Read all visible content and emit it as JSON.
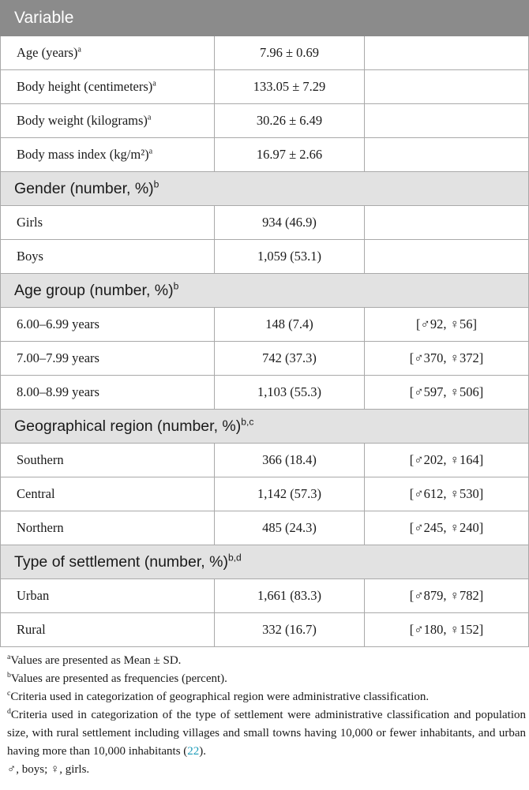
{
  "table": {
    "header": "Variable",
    "rows": [
      {
        "label": "Age (years)",
        "sup": "a",
        "value": "7.96 ± 0.69",
        "note": ""
      },
      {
        "label": "Body height (centimeters)",
        "sup": "a",
        "value": "133.05 ± 7.29",
        "note": ""
      },
      {
        "label": "Body weight (kilograms)",
        "sup": "a",
        "value": "30.26 ± 6.49",
        "note": ""
      },
      {
        "label": "Body mass index (kg/m²)",
        "sup": "a",
        "value": "16.97 ± 2.66",
        "note": ""
      }
    ],
    "sections": [
      {
        "title": "Gender (number, %)",
        "sup": "b",
        "rows": [
          {
            "label": "Girls",
            "value": "934 (46.9)",
            "note": ""
          },
          {
            "label": "Boys",
            "value": "1,059 (53.1)",
            "note": ""
          }
        ]
      },
      {
        "title": "Age group (number, %)",
        "sup": "b",
        "rows": [
          {
            "label": "6.00–6.99 years",
            "value": "148 (7.4)",
            "note": "[♂92, ♀56]"
          },
          {
            "label": "7.00–7.99 years",
            "value": "742 (37.3)",
            "note": "[♂370, ♀372]"
          },
          {
            "label": "8.00–8.99 years",
            "value": "1,103 (55.3)",
            "note": "[♂597, ♀506]"
          }
        ]
      },
      {
        "title": "Geographical region (number, %)",
        "sup": "b,c",
        "rows": [
          {
            "label": "Southern",
            "value": "366 (18.4)",
            "note": "[♂202, ♀164]"
          },
          {
            "label": "Central",
            "value": "1,142 (57.3)",
            "note": "[♂612, ♀530]"
          },
          {
            "label": "Northern",
            "value": "485 (24.3)",
            "note": "[♂245, ♀240]"
          }
        ]
      },
      {
        "title": "Type of settlement (number, %)",
        "sup": "b,d",
        "rows": [
          {
            "label": "Urban",
            "value": "1,661 (83.3)",
            "note": "[♂879, ♀782]"
          },
          {
            "label": "Rural",
            "value": "332 (16.7)",
            "note": "[♂180, ♀152]"
          }
        ]
      }
    ]
  },
  "footnotes": [
    {
      "sup": "a",
      "text": "Values are presented as Mean ± SD."
    },
    {
      "sup": "b",
      "text": "Values are presented as frequencies (percent)."
    },
    {
      "sup": "c",
      "text": "Criteria used in categorization of geographical region were administrative classification."
    },
    {
      "sup": "d",
      "text": "Criteria used in categorization of the type of settlement were administrative classification and population size, with rural settlement including villages and small towns having 10,000 or fewer inhabitants, and urban having more than 10,000 inhabitants (",
      "ref": "22",
      "tail": ")."
    },
    {
      "sup": "",
      "text": "♂, boys; ♀, girls."
    }
  ]
}
